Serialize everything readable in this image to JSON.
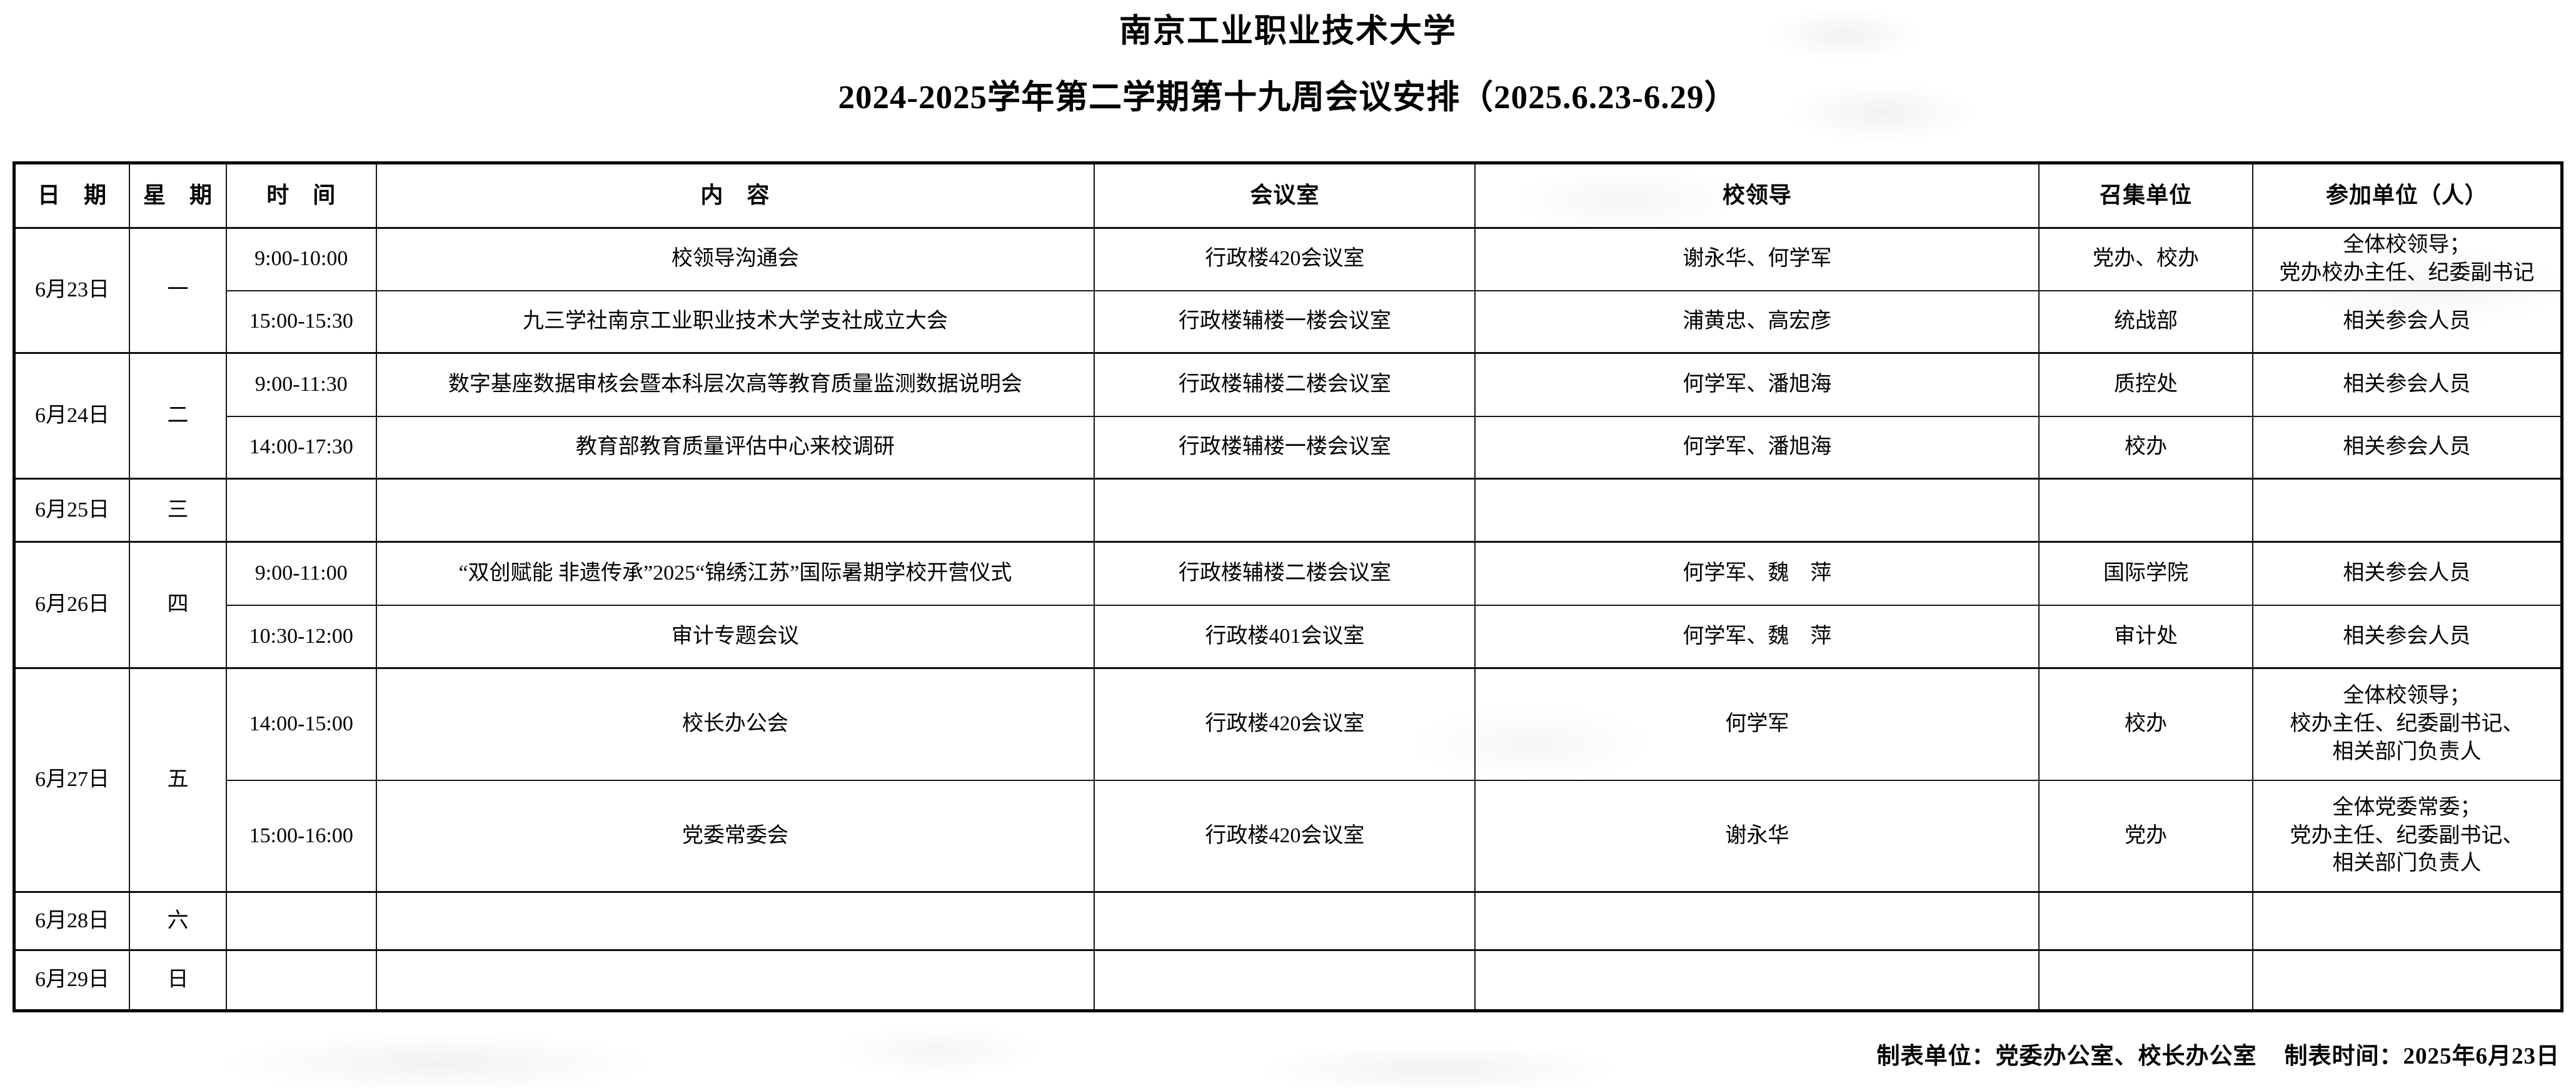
{
  "title": "南京工业职业技术大学",
  "subtitle": "2024-2025学年第二学期第十九周会议安排（2025.6.23-6.29）",
  "table": {
    "headers": [
      "日　期",
      "星　期",
      "时　间",
      "内　容",
      "会议室",
      "校领导",
      "召集单位",
      "参加单位（人）"
    ],
    "groups": [
      {
        "date": "6月23日",
        "weekday": "一",
        "meetings": [
          {
            "time": "9:00-10:00",
            "content": "校领导沟通会",
            "room": "行政楼420会议室",
            "leaders": "谢永华、何学军",
            "convener": "党办、校办",
            "participants": "全体校领导；\n党办校办主任、纪委副书记"
          },
          {
            "time": "15:00-15:30",
            "content": "九三学社南京工业职业技术大学支社成立大会",
            "room": "行政楼辅楼一楼会议室",
            "leaders": "浦黄忠、高宏彦",
            "convener": "统战部",
            "participants": "相关参会人员"
          }
        ]
      },
      {
        "date": "6月24日",
        "weekday": "二",
        "meetings": [
          {
            "time": "9:00-11:30",
            "content": "数字基座数据审核会暨本科层次高等教育质量监测数据说明会",
            "room": "行政楼辅楼二楼会议室",
            "leaders": "何学军、潘旭海",
            "convener": "质控处",
            "participants": "相关参会人员"
          },
          {
            "time": "14:00-17:30",
            "content": "教育部教育质量评估中心来校调研",
            "room": "行政楼辅楼一楼会议室",
            "leaders": "何学军、潘旭海",
            "convener": "校办",
            "participants": "相关参会人员"
          }
        ]
      },
      {
        "date": "6月25日",
        "weekday": "三",
        "meetings": [
          {
            "time": "",
            "content": "",
            "room": "",
            "leaders": "",
            "convener": "",
            "participants": ""
          }
        ]
      },
      {
        "date": "6月26日",
        "weekday": "四",
        "meetings": [
          {
            "time": "9:00-11:00",
            "content": "“双创赋能 非遗传承”2025“锦绣江苏”国际暑期学校开营仪式",
            "room": "行政楼辅楼二楼会议室",
            "leaders": "何学军、魏　萍",
            "convener": "国际学院",
            "participants": "相关参会人员"
          },
          {
            "time": "10:30-12:00",
            "content": "审计专题会议",
            "room": "行政楼401会议室",
            "leaders": "何学军、魏　萍",
            "convener": "审计处",
            "participants": "相关参会人员"
          }
        ]
      },
      {
        "date": "6月27日",
        "weekday": "五",
        "meetings": [
          {
            "time": "14:00-15:00",
            "content": "校长办公会",
            "room": "行政楼420会议室",
            "leaders": "何学军",
            "convener": "校办",
            "participants": "全体校领导；\n校办主任、纪委副书记、\n相关部门负责人"
          },
          {
            "time": "15:00-16:00",
            "content": "党委常委会",
            "room": "行政楼420会议室",
            "leaders": "谢永华",
            "convener": "党办",
            "participants": "全体党委常委；\n党办主任、纪委副书记、\n相关部门负责人"
          }
        ]
      },
      {
        "date": "6月28日",
        "weekday": "六",
        "meetings": [
          {
            "time": "",
            "content": "",
            "room": "",
            "leaders": "",
            "convener": "",
            "participants": ""
          }
        ]
      },
      {
        "date": "6月29日",
        "weekday": "日",
        "meetings": [
          {
            "time": "",
            "content": "",
            "room": "",
            "leaders": "",
            "convener": "",
            "participants": ""
          }
        ]
      }
    ]
  },
  "footer": {
    "unit_label": "制表单位：党委办公室、校长办公室",
    "time_label": "制表时间：2025年6月23日"
  }
}
